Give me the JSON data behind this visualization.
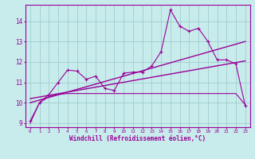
{
  "bg_color": "#c8ecec",
  "grid_color": "#a0cccc",
  "line_color": "#990099",
  "xlabel": "Windchill (Refroidissement éolien,°C)",
  "xlim": [
    -0.5,
    23.5
  ],
  "ylim": [
    8.8,
    14.8
  ],
  "yticks": [
    9,
    10,
    11,
    12,
    13,
    14
  ],
  "xticks": [
    0,
    1,
    2,
    3,
    4,
    5,
    6,
    7,
    8,
    9,
    10,
    11,
    12,
    13,
    14,
    15,
    16,
    17,
    18,
    19,
    20,
    21,
    22,
    23
  ],
  "series_min": {
    "x": [
      0,
      1,
      2,
      3,
      4,
      5,
      6,
      7,
      8,
      9,
      10,
      11,
      12,
      13,
      14,
      15,
      16,
      17,
      18,
      19,
      20,
      21,
      22,
      23
    ],
    "y": [
      9.0,
      10.0,
      10.3,
      10.4,
      10.45,
      10.45,
      10.45,
      10.45,
      10.45,
      10.45,
      10.45,
      10.45,
      10.45,
      10.45,
      10.45,
      10.45,
      10.45,
      10.45,
      10.45,
      10.45,
      10.45,
      10.45,
      10.45,
      9.9
    ]
  },
  "series_max": {
    "x": [
      0,
      1,
      2,
      3,
      4,
      5,
      6,
      7,
      8,
      9,
      10,
      11,
      12,
      13,
      14,
      15,
      16,
      17,
      18,
      19,
      20,
      21,
      22,
      23
    ],
    "y": [
      9.1,
      10.0,
      10.4,
      11.0,
      11.6,
      11.55,
      11.15,
      11.3,
      10.7,
      10.6,
      11.45,
      11.5,
      11.5,
      11.8,
      12.5,
      14.55,
      13.75,
      13.5,
      13.65,
      13.0,
      12.1,
      12.1,
      11.9,
      9.85
    ]
  },
  "series_linear1": {
    "x": [
      0,
      23
    ],
    "y": [
      10.0,
      13.0
    ]
  },
  "series_linear2": {
    "x": [
      0,
      23
    ],
    "y": [
      10.2,
      12.05
    ]
  }
}
